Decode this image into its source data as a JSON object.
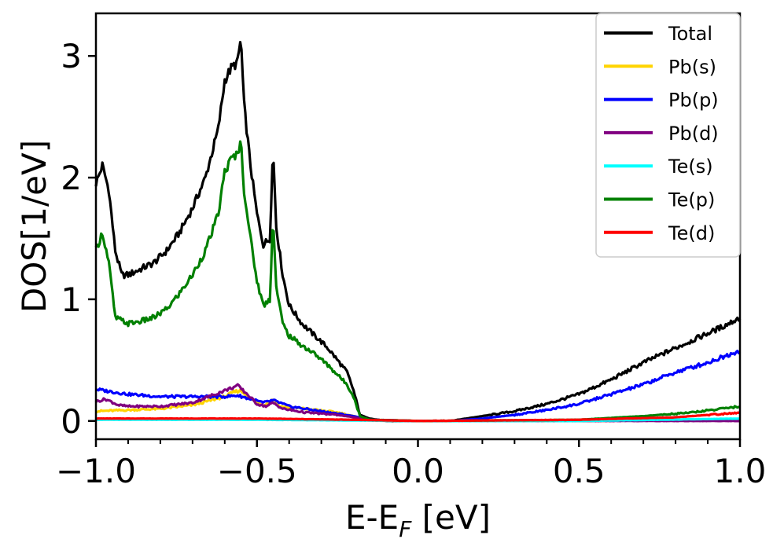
{
  "chart_data": {
    "type": "line",
    "xlabel": "E-E",
    "xlabel_subscript": "F",
    "xlabel_unit": " [eV]",
    "ylabel": "DOS[1/eV]",
    "xlim": [
      -1.0,
      1.0
    ],
    "ylim": [
      -0.15,
      3.35
    ],
    "xticks": [
      -1.0,
      -0.5,
      0.0,
      0.5,
      1.0
    ],
    "xtick_labels": [
      "−1.0",
      "−0.5",
      "0.0",
      "0.5",
      "1.0"
    ],
    "yticks": [
      0,
      1,
      2,
      3
    ],
    "ytick_labels": [
      "0",
      "1",
      "2",
      "3"
    ],
    "grid": false,
    "legend_position": "top-right",
    "series": [
      {
        "name": "Total",
        "color": "#000000",
        "points": [
          [
            -1.0,
            1.95
          ],
          [
            -0.98,
            2.1
          ],
          [
            -0.96,
            1.9
          ],
          [
            -0.94,
            1.4
          ],
          [
            -0.92,
            1.2
          ],
          [
            -0.9,
            1.2
          ],
          [
            -0.86,
            1.25
          ],
          [
            -0.82,
            1.3
          ],
          [
            -0.78,
            1.4
          ],
          [
            -0.74,
            1.55
          ],
          [
            -0.7,
            1.75
          ],
          [
            -0.66,
            2.0
          ],
          [
            -0.62,
            2.4
          ],
          [
            -0.6,
            2.8
          ],
          [
            -0.58,
            2.9
          ],
          [
            -0.56,
            2.95
          ],
          [
            -0.55,
            3.15
          ],
          [
            -0.54,
            2.6
          ],
          [
            -0.52,
            2.1
          ],
          [
            -0.5,
            1.7
          ],
          [
            -0.48,
            1.45
          ],
          [
            -0.46,
            1.5
          ],
          [
            -0.45,
            2.25
          ],
          [
            -0.44,
            1.6
          ],
          [
            -0.42,
            1.2
          ],
          [
            -0.4,
            0.95
          ],
          [
            -0.36,
            0.8
          ],
          [
            -0.32,
            0.7
          ],
          [
            -0.28,
            0.6
          ],
          [
            -0.25,
            0.5
          ],
          [
            -0.22,
            0.4
          ],
          [
            -0.2,
            0.25
          ],
          [
            -0.18,
            0.05
          ],
          [
            -0.15,
            0.02
          ],
          [
            -0.1,
            0.0
          ],
          [
            0.0,
            0.0
          ],
          [
            0.1,
            0.0
          ],
          [
            0.2,
            0.04
          ],
          [
            0.3,
            0.08
          ],
          [
            0.4,
            0.14
          ],
          [
            0.5,
            0.22
          ],
          [
            0.6,
            0.34
          ],
          [
            0.7,
            0.48
          ],
          [
            0.8,
            0.6
          ],
          [
            0.9,
            0.72
          ],
          [
            0.95,
            0.78
          ],
          [
            1.0,
            0.85
          ]
        ]
      },
      {
        "name": "Pb(s)",
        "color": "#ffd400",
        "points": [
          [
            -1.0,
            0.08
          ],
          [
            -0.9,
            0.09
          ],
          [
            -0.8,
            0.1
          ],
          [
            -0.7,
            0.13
          ],
          [
            -0.6,
            0.2
          ],
          [
            -0.57,
            0.24
          ],
          [
            -0.55,
            0.25
          ],
          [
            -0.52,
            0.18
          ],
          [
            -0.48,
            0.13
          ],
          [
            -0.45,
            0.18
          ],
          [
            -0.43,
            0.12
          ],
          [
            -0.35,
            0.1
          ],
          [
            -0.25,
            0.07
          ],
          [
            -0.2,
            0.04
          ],
          [
            -0.15,
            0.01
          ],
          [
            0.0,
            0.0
          ],
          [
            0.5,
            0.0
          ],
          [
            1.0,
            0.01
          ]
        ]
      },
      {
        "name": "Pb(p)",
        "color": "#0000ff",
        "points": [
          [
            -1.0,
            0.26
          ],
          [
            -0.95,
            0.24
          ],
          [
            -0.9,
            0.22
          ],
          [
            -0.8,
            0.2
          ],
          [
            -0.7,
            0.2
          ],
          [
            -0.6,
            0.2
          ],
          [
            -0.56,
            0.21
          ],
          [
            -0.52,
            0.18
          ],
          [
            -0.48,
            0.15
          ],
          [
            -0.45,
            0.17
          ],
          [
            -0.4,
            0.12
          ],
          [
            -0.3,
            0.08
          ],
          [
            -0.2,
            0.04
          ],
          [
            -0.15,
            0.01
          ],
          [
            0.0,
            0.0
          ],
          [
            0.1,
            0.0
          ],
          [
            0.2,
            0.02
          ],
          [
            0.3,
            0.05
          ],
          [
            0.4,
            0.09
          ],
          [
            0.5,
            0.14
          ],
          [
            0.6,
            0.22
          ],
          [
            0.7,
            0.3
          ],
          [
            0.8,
            0.4
          ],
          [
            0.9,
            0.48
          ],
          [
            1.0,
            0.58
          ]
        ]
      },
      {
        "name": "Pb(d)",
        "color": "#800080",
        "points": [
          [
            -1.0,
            0.16
          ],
          [
            -0.97,
            0.18
          ],
          [
            -0.93,
            0.13
          ],
          [
            -0.9,
            0.12
          ],
          [
            -0.8,
            0.12
          ],
          [
            -0.7,
            0.15
          ],
          [
            -0.62,
            0.23
          ],
          [
            -0.58,
            0.27
          ],
          [
            -0.56,
            0.29
          ],
          [
            -0.53,
            0.22
          ],
          [
            -0.5,
            0.14
          ],
          [
            -0.47,
            0.12
          ],
          [
            -0.45,
            0.15
          ],
          [
            -0.42,
            0.1
          ],
          [
            -0.35,
            0.07
          ],
          [
            -0.25,
            0.05
          ],
          [
            -0.2,
            0.03
          ],
          [
            -0.15,
            0.01
          ],
          [
            0.0,
            0.0
          ],
          [
            1.0,
            0.0
          ]
        ]
      },
      {
        "name": "Te(s)",
        "color": "#00ffff",
        "points": [
          [
            -1.0,
            0.01
          ],
          [
            -0.5,
            0.01
          ],
          [
            0.0,
            0.0
          ],
          [
            0.5,
            0.0
          ],
          [
            1.0,
            0.02
          ]
        ]
      },
      {
        "name": "Te(p)",
        "color": "#008000",
        "points": [
          [
            -1.0,
            1.4
          ],
          [
            -0.98,
            1.55
          ],
          [
            -0.96,
            1.3
          ],
          [
            -0.94,
            0.85
          ],
          [
            -0.9,
            0.8
          ],
          [
            -0.86,
            0.82
          ],
          [
            -0.82,
            0.85
          ],
          [
            -0.78,
            0.92
          ],
          [
            -0.74,
            1.05
          ],
          [
            -0.7,
            1.2
          ],
          [
            -0.66,
            1.4
          ],
          [
            -0.62,
            1.7
          ],
          [
            -0.6,
            2.05
          ],
          [
            -0.58,
            2.15
          ],
          [
            -0.56,
            2.2
          ],
          [
            -0.55,
            2.3
          ],
          [
            -0.54,
            1.9
          ],
          [
            -0.52,
            1.5
          ],
          [
            -0.5,
            1.15
          ],
          [
            -0.48,
            0.95
          ],
          [
            -0.46,
            1.0
          ],
          [
            -0.45,
            1.7
          ],
          [
            -0.44,
            1.1
          ],
          [
            -0.42,
            0.8
          ],
          [
            -0.4,
            0.7
          ],
          [
            -0.36,
            0.62
          ],
          [
            -0.32,
            0.55
          ],
          [
            -0.28,
            0.46
          ],
          [
            -0.25,
            0.38
          ],
          [
            -0.22,
            0.3
          ],
          [
            -0.2,
            0.2
          ],
          [
            -0.18,
            0.04
          ],
          [
            -0.15,
            0.01
          ],
          [
            0.0,
            0.0
          ],
          [
            0.5,
            0.01
          ],
          [
            0.7,
            0.04
          ],
          [
            0.85,
            0.07
          ],
          [
            1.0,
            0.12
          ]
        ]
      },
      {
        "name": "Te(d)",
        "color": "#ff0000",
        "points": [
          [
            -1.0,
            0.02
          ],
          [
            -0.5,
            0.02
          ],
          [
            -0.2,
            0.01
          ],
          [
            0.0,
            0.0
          ],
          [
            0.5,
            0.01
          ],
          [
            0.8,
            0.03
          ],
          [
            1.0,
            0.07
          ]
        ]
      }
    ]
  }
}
